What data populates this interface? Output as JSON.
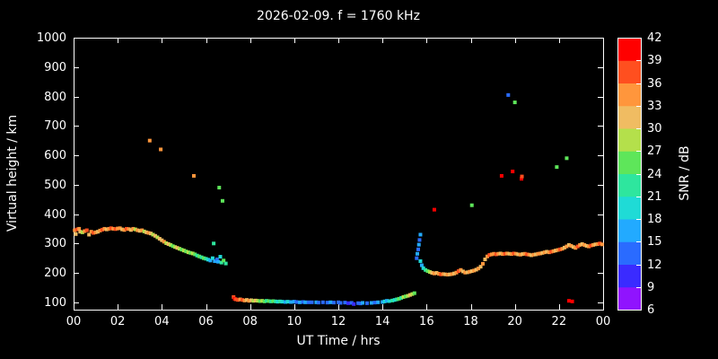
{
  "title": "2026-02-09. f = 1760 kHz",
  "axes": {
    "x_label": "UT Time / hrs",
    "y_label": "Virtual height / km",
    "cb_label": "SNR / dB"
  },
  "chart_data": {
    "type": "scatter",
    "title": "2026-02-09. f = 1760 kHz",
    "xlabel": "UT Time / hrs",
    "ylabel": "Virtual height / km",
    "xlim": [
      0,
      24
    ],
    "ylim": [
      75,
      1000
    ],
    "background": "#000000",
    "axis_color": "#ffffff",
    "grid": false,
    "x_ticks": {
      "values": [
        0,
        2,
        4,
        6,
        8,
        10,
        12,
        14,
        16,
        18,
        20,
        22,
        24
      ],
      "labels": [
        "00",
        "02",
        "04",
        "06",
        "08",
        "10",
        "12",
        "14",
        "16",
        "18",
        "20",
        "22",
        "00"
      ]
    },
    "y_ticks": [
      100,
      200,
      300,
      400,
      500,
      600,
      700,
      800,
      900,
      1000
    ],
    "colorbar": {
      "label": "SNR / dB",
      "min": 6,
      "max": 42,
      "ticks": [
        6,
        9,
        12,
        15,
        18,
        21,
        24,
        27,
        30,
        33,
        36,
        39,
        42
      ],
      "colors": [
        "#9013fe",
        "#3a2bff",
        "#2a6bff",
        "#22aaff",
        "#1fdbd6",
        "#2ee69e",
        "#5ee65a",
        "#b4e04b",
        "#f0bc62",
        "#ff963c",
        "#ff4f1f",
        "#ff0000"
      ]
    },
    "points_format": [
      "time_hr",
      "height_km",
      "snr_db"
    ],
    "points": [
      [
        0.05,
        345,
        33
      ],
      [
        0.1,
        332,
        30
      ],
      [
        0.15,
        348,
        36
      ],
      [
        0.25,
        350,
        33
      ],
      [
        0.3,
        340,
        30
      ],
      [
        0.4,
        338,
        27
      ],
      [
        0.5,
        342,
        33
      ],
      [
        0.6,
        345,
        36
      ],
      [
        0.7,
        330,
        30
      ],
      [
        0.8,
        340,
        33
      ],
      [
        0.9,
        336,
        36
      ],
      [
        1.0,
        338,
        33
      ],
      [
        1.1,
        340,
        30
      ],
      [
        1.2,
        344,
        33
      ],
      [
        1.3,
        347,
        36
      ],
      [
        1.4,
        350,
        33
      ],
      [
        1.5,
        348,
        30
      ],
      [
        1.6,
        350,
        33
      ],
      [
        1.7,
        352,
        36
      ],
      [
        1.8,
        350,
        33
      ],
      [
        1.9,
        349,
        36
      ],
      [
        2.0,
        351,
        33
      ],
      [
        2.1,
        352,
        33
      ],
      [
        2.2,
        348,
        30
      ],
      [
        2.3,
        346,
        33
      ],
      [
        2.4,
        350,
        36
      ],
      [
        2.5,
        349,
        33
      ],
      [
        2.6,
        346,
        30
      ],
      [
        2.7,
        350,
        33
      ],
      [
        2.8,
        348,
        27
      ],
      [
        2.9,
        345,
        33
      ],
      [
        3.0,
        343,
        30
      ],
      [
        3.1,
        345,
        33
      ],
      [
        3.2,
        341,
        27
      ],
      [
        3.3,
        338,
        30
      ],
      [
        3.4,
        336,
        33
      ],
      [
        3.45,
        650,
        33
      ],
      [
        3.5,
        334,
        30
      ],
      [
        3.6,
        330,
        27
      ],
      [
        3.7,
        326,
        30
      ],
      [
        3.8,
        321,
        27
      ],
      [
        3.9,
        316,
        30
      ],
      [
        3.95,
        620,
        33
      ],
      [
        4.0,
        311,
        30
      ],
      [
        4.1,
        306,
        33
      ],
      [
        4.2,
        301,
        27
      ],
      [
        4.3,
        298,
        30
      ],
      [
        4.4,
        295,
        27
      ],
      [
        4.5,
        291,
        24
      ],
      [
        4.6,
        288,
        27
      ],
      [
        4.7,
        285,
        30
      ],
      [
        4.8,
        282,
        27
      ],
      [
        4.9,
        279,
        24
      ],
      [
        5.0,
        276,
        27
      ],
      [
        5.1,
        273,
        24
      ],
      [
        5.2,
        270,
        27
      ],
      [
        5.3,
        268,
        24
      ],
      [
        5.4,
        266,
        27
      ],
      [
        5.45,
        530,
        33
      ],
      [
        5.5,
        263,
        24
      ],
      [
        5.6,
        259,
        21
      ],
      [
        5.7,
        256,
        24
      ],
      [
        5.8,
        253,
        21
      ],
      [
        5.9,
        250,
        24
      ],
      [
        6.0,
        248,
        21
      ],
      [
        6.1,
        245,
        18
      ],
      [
        6.2,
        242,
        15
      ],
      [
        6.3,
        250,
        18
      ],
      [
        6.35,
        300,
        21
      ],
      [
        6.4,
        240,
        15
      ],
      [
        6.5,
        246,
        12
      ],
      [
        6.55,
        238,
        15
      ],
      [
        6.6,
        490,
        24
      ],
      [
        6.65,
        255,
        18
      ],
      [
        6.7,
        235,
        21
      ],
      [
        6.75,
        445,
        24
      ],
      [
        6.8,
        242,
        24
      ],
      [
        6.9,
        232,
        21
      ],
      [
        7.25,
        118,
        36
      ],
      [
        7.3,
        112,
        39
      ],
      [
        7.35,
        110,
        36
      ],
      [
        7.45,
        108,
        36
      ],
      [
        7.55,
        110,
        33
      ],
      [
        7.65,
        108,
        36
      ],
      [
        7.75,
        106,
        33
      ],
      [
        7.85,
        108,
        30
      ],
      [
        7.95,
        105,
        33
      ],
      [
        8.05,
        107,
        30
      ],
      [
        8.15,
        105,
        27
      ],
      [
        8.25,
        106,
        30
      ],
      [
        8.35,
        105,
        27
      ],
      [
        8.45,
        104,
        24
      ],
      [
        8.55,
        105,
        27
      ],
      [
        8.65,
        103,
        24
      ],
      [
        8.75,
        105,
        21
      ],
      [
        8.85,
        104,
        24
      ],
      [
        8.95,
        103,
        21
      ],
      [
        9.05,
        104,
        24
      ],
      [
        9.15,
        103,
        21
      ],
      [
        9.25,
        102,
        18
      ],
      [
        9.35,
        103,
        21
      ],
      [
        9.45,
        102,
        18
      ],
      [
        9.6,
        101,
        15
      ],
      [
        9.7,
        102,
        18
      ],
      [
        9.85,
        101,
        15
      ],
      [
        10.0,
        102,
        15
      ],
      [
        10.1,
        101,
        12
      ],
      [
        10.25,
        100,
        15
      ],
      [
        10.4,
        101,
        12
      ],
      [
        10.5,
        100,
        15
      ],
      [
        10.65,
        100,
        12
      ],
      [
        10.8,
        100,
        12
      ],
      [
        11.0,
        100,
        15
      ],
      [
        11.1,
        99,
        12
      ],
      [
        11.3,
        100,
        12
      ],
      [
        11.5,
        99,
        12
      ],
      [
        11.65,
        100,
        15
      ],
      [
        11.8,
        99,
        12
      ],
      [
        12.0,
        100,
        12
      ],
      [
        12.1,
        98,
        12
      ],
      [
        12.3,
        99,
        12
      ],
      [
        12.45,
        97,
        9
      ],
      [
        12.6,
        98,
        12
      ],
      [
        12.7,
        94,
        9
      ],
      [
        12.9,
        97,
        12
      ],
      [
        13.0,
        96,
        12
      ],
      [
        13.1,
        98,
        15
      ],
      [
        13.3,
        97,
        12
      ],
      [
        13.5,
        98,
        15
      ],
      [
        13.65,
        99,
        12
      ],
      [
        13.8,
        100,
        15
      ],
      [
        14.0,
        101,
        15
      ],
      [
        14.1,
        103,
        18
      ],
      [
        14.2,
        105,
        15
      ],
      [
        14.3,
        104,
        18
      ],
      [
        14.45,
        106,
        21
      ],
      [
        14.55,
        108,
        18
      ],
      [
        14.65,
        110,
        21
      ],
      [
        14.75,
        112,
        24
      ],
      [
        14.85,
        115,
        21
      ],
      [
        14.95,
        118,
        27
      ],
      [
        15.05,
        120,
        24
      ],
      [
        15.15,
        122,
        27
      ],
      [
        15.25,
        125,
        30
      ],
      [
        15.35,
        128,
        27
      ],
      [
        15.45,
        131,
        24
      ],
      [
        15.55,
        250,
        12
      ],
      [
        15.58,
        265,
        15
      ],
      [
        15.62,
        280,
        12
      ],
      [
        15.65,
        296,
        15
      ],
      [
        15.68,
        312,
        12
      ],
      [
        15.72,
        330,
        15
      ],
      [
        15.72,
        240,
        18
      ],
      [
        15.78,
        226,
        15
      ],
      [
        15.85,
        216,
        18
      ],
      [
        15.95,
        210,
        21
      ],
      [
        16.05,
        206,
        24
      ],
      [
        16.15,
        203,
        27
      ],
      [
        16.25,
        200,
        30
      ],
      [
        16.35,
        415,
        39
      ],
      [
        16.35,
        198,
        33
      ],
      [
        16.45,
        200,
        30
      ],
      [
        16.55,
        197,
        33
      ],
      [
        16.65,
        195,
        36
      ],
      [
        16.75,
        196,
        33
      ],
      [
        16.85,
        195,
        30
      ],
      [
        16.95,
        194,
        33
      ],
      [
        17.05,
        195,
        30
      ],
      [
        17.15,
        196,
        33
      ],
      [
        17.25,
        198,
        30
      ],
      [
        17.35,
        201,
        33
      ],
      [
        17.45,
        206,
        36
      ],
      [
        17.55,
        210,
        33
      ],
      [
        17.65,
        205,
        30
      ],
      [
        17.75,
        201,
        33
      ],
      [
        17.85,
        202,
        30
      ],
      [
        17.95,
        204,
        33
      ],
      [
        18.05,
        430,
        24
      ],
      [
        18.05,
        206,
        30
      ],
      [
        18.15,
        208,
        33
      ],
      [
        18.25,
        211,
        30
      ],
      [
        18.35,
        215,
        33
      ],
      [
        18.45,
        221,
        30
      ],
      [
        18.55,
        231,
        33
      ],
      [
        18.65,
        246,
        30
      ],
      [
        18.75,
        256,
        33
      ],
      [
        18.85,
        261,
        36
      ],
      [
        18.95,
        263,
        33
      ],
      [
        19.05,
        265,
        33
      ],
      [
        19.15,
        263,
        36
      ],
      [
        19.25,
        265,
        33
      ],
      [
        19.35,
        266,
        30
      ],
      [
        19.4,
        530,
        39
      ],
      [
        19.45,
        264,
        33
      ],
      [
        19.55,
        265,
        36
      ],
      [
        19.65,
        266,
        33
      ],
      [
        19.7,
        805,
        12
      ],
      [
        19.75,
        265,
        30
      ],
      [
        19.85,
        264,
        33
      ],
      [
        19.9,
        545,
        39
      ],
      [
        19.95,
        266,
        36
      ],
      [
        20.0,
        780,
        24
      ],
      [
        20.05,
        265,
        33
      ],
      [
        20.15,
        263,
        30
      ],
      [
        20.25,
        262,
        33
      ],
      [
        20.3,
        520,
        39
      ],
      [
        20.32,
        528,
        36
      ],
      [
        20.35,
        264,
        30
      ],
      [
        20.45,
        265,
        33
      ],
      [
        20.55,
        263,
        36
      ],
      [
        20.65,
        262,
        33
      ],
      [
        20.75,
        260,
        30
      ],
      [
        20.85,
        262,
        33
      ],
      [
        20.95,
        263,
        30
      ],
      [
        21.05,
        265,
        33
      ],
      [
        21.15,
        266,
        33
      ],
      [
        21.25,
        268,
        30
      ],
      [
        21.35,
        270,
        33
      ],
      [
        21.45,
        272,
        30
      ],
      [
        21.55,
        270,
        33
      ],
      [
        21.65,
        272,
        36
      ],
      [
        21.75,
        274,
        33
      ],
      [
        21.85,
        276,
        30
      ],
      [
        21.9,
        560,
        24
      ],
      [
        21.95,
        278,
        33
      ],
      [
        22.05,
        280,
        36
      ],
      [
        22.15,
        282,
        33
      ],
      [
        22.25,
        286,
        30
      ],
      [
        22.35,
        590,
        24
      ],
      [
        22.35,
        290,
        33
      ],
      [
        22.45,
        105,
        39
      ],
      [
        22.45,
        295,
        30
      ],
      [
        22.55,
        292,
        33
      ],
      [
        22.6,
        103,
        39
      ],
      [
        22.65,
        288,
        30
      ],
      [
        22.75,
        285,
        33
      ],
      [
        22.85,
        290,
        36
      ],
      [
        22.95,
        295,
        33
      ],
      [
        23.05,
        298,
        30
      ],
      [
        23.15,
        295,
        33
      ],
      [
        23.25,
        292,
        30
      ],
      [
        23.35,
        290,
        33
      ],
      [
        23.45,
        293,
        36
      ],
      [
        23.55,
        295,
        33
      ],
      [
        23.65,
        297,
        30
      ],
      [
        23.75,
        298,
        33
      ],
      [
        23.85,
        300,
        36
      ],
      [
        23.95,
        297,
        33
      ]
    ]
  }
}
